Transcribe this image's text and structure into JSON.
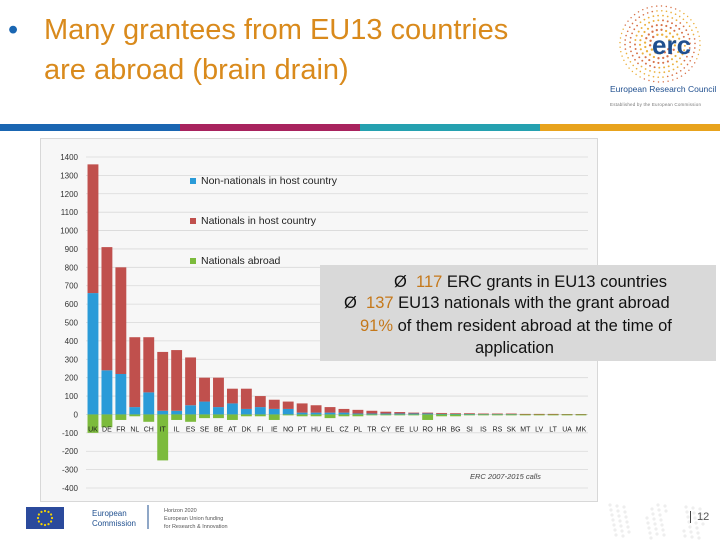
{
  "title": {
    "bullet": "•",
    "line1": "Many grantees from EU13 countries",
    "line2": "are abroad (brain drain)"
  },
  "logo": {
    "wordmark": "erc",
    "org_name": "European Research Council",
    "tagline": "Established by the European Commission"
  },
  "stripe_colors": [
    "#1a66b2",
    "#a8235e",
    "#25a1b0",
    "#e8a31d"
  ],
  "chart_data": {
    "type": "bar",
    "stacked": true,
    "ylim": [
      -400,
      1400
    ],
    "yticks": [
      1400,
      1300,
      1200,
      1100,
      1000,
      900,
      800,
      700,
      600,
      500,
      400,
      300,
      200,
      100,
      0,
      -100,
      -200,
      -300,
      -400
    ],
    "grid": true,
    "legend_position": "top-left",
    "annotation": "ERC 2007-2015 calls",
    "categories": [
      "UK",
      "DE",
      "FR",
      "NL",
      "CH",
      "IT",
      "IL",
      "ES",
      "SE",
      "BE",
      "AT",
      "DK",
      "FI",
      "IE",
      "NO",
      "PT",
      "HU",
      "EL",
      "CZ",
      "PL",
      "TR",
      "CY",
      "EE",
      "LU",
      "RO",
      "HR",
      "BG",
      "SI",
      "IS",
      "RS",
      "SK",
      "MT",
      "LV",
      "LT",
      "UA",
      "MK"
    ],
    "series": [
      {
        "name": "Non-nationals in host country",
        "color": "#2a9bd8",
        "values": [
          660,
          240,
          220,
          40,
          120,
          20,
          20,
          50,
          70,
          40,
          60,
          30,
          40,
          30,
          30,
          10,
          10,
          10,
          10,
          5,
          5,
          5,
          5,
          5,
          5,
          3,
          3,
          3,
          2,
          2,
          2,
          1,
          1,
          1,
          1,
          1
        ]
      },
      {
        "name": "Nationals in host country",
        "color": "#c0504d",
        "values": [
          700,
          670,
          580,
          380,
          300,
          320,
          330,
          260,
          130,
          160,
          80,
          110,
          60,
          50,
          40,
          50,
          40,
          30,
          20,
          20,
          15,
          10,
          8,
          5,
          5,
          5,
          4,
          4,
          3,
          3,
          3,
          2,
          2,
          2,
          1,
          1
        ]
      },
      {
        "name": "Nationals abroad",
        "color": "#7cbb3c",
        "values": [
          -100,
          -70,
          -30,
          -10,
          -40,
          -250,
          -30,
          -40,
          -20,
          -20,
          -30,
          -10,
          -10,
          -30,
          -5,
          -10,
          -10,
          -20,
          -10,
          -10,
          -5,
          -5,
          -5,
          -5,
          -30,
          -10,
          -10,
          -5,
          -5,
          -5,
          -5,
          -5,
          -5,
          -5,
          -5,
          -5
        ]
      }
    ]
  },
  "callout": {
    "arrow": "Ø",
    "l1_num": "117",
    "l1_text": "ERC grants in EU13 countries",
    "l2_num": "137",
    "l2_text": "EU13 nationals with the grant abroad",
    "l3_num": "91%",
    "l3_text": "of them resident abroad at the time of",
    "l4_text": "application"
  },
  "footer": {
    "ec_line1": "European",
    "ec_line2": "Commission",
    "h_line1": "Horizon 2020",
    "h_line2": "European Union funding",
    "h_line3": "for Research & Innovation",
    "page_number": "12"
  }
}
